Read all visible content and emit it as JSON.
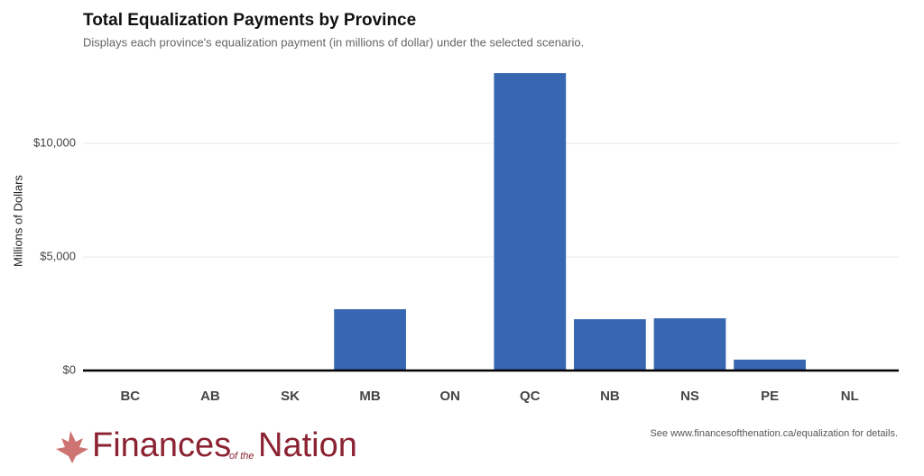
{
  "chart_data": {
    "type": "bar",
    "title": "Total Equalization Payments by Province",
    "subtitle": "Displays each province's equalization payment (in millions of dollar) under the selected scenario.",
    "y_label": "Millions of Dollars",
    "categories": [
      "BC",
      "AB",
      "SK",
      "MB",
      "ON",
      "QC",
      "NB",
      "NS",
      "PE",
      "NL"
    ],
    "values": [
      0,
      0,
      0,
      2700,
      0,
      13100,
      2260,
      2300,
      480,
      0
    ],
    "color": "#3767b0",
    "ylim": [
      0,
      13500
    ],
    "yticks": [
      {
        "value": 0,
        "label": "$0"
      },
      {
        "value": 5000,
        "label": "$5,000"
      },
      {
        "value": 10000,
        "label": "$10,000"
      }
    ],
    "grid": true
  },
  "footer": {
    "note": "See www.financesofthenation.ca/equalization for details.",
    "logo": {
      "first": "Finances",
      "middle": "of the",
      "last": "Nation"
    }
  }
}
